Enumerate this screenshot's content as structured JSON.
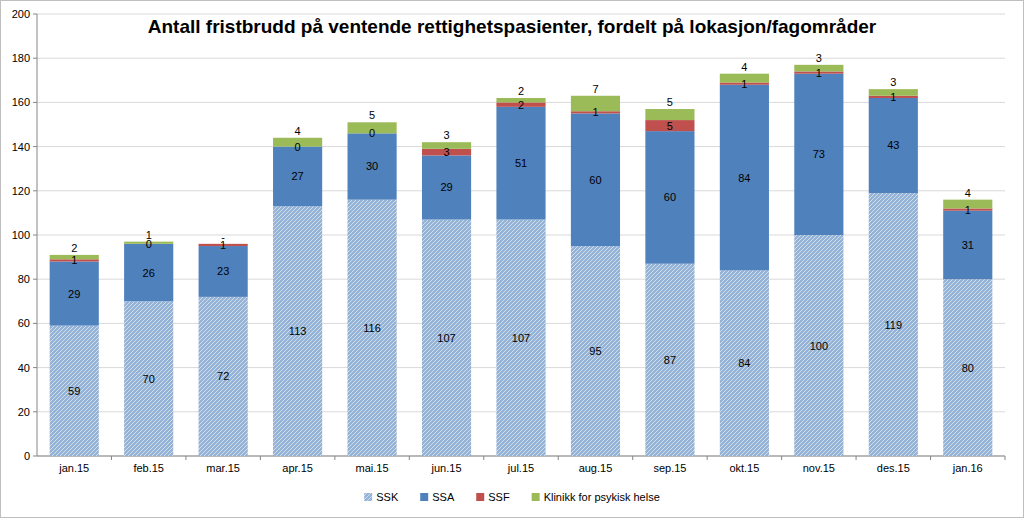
{
  "chart_data": {
    "type": "bar",
    "title": "Antall fristbrudd på ventende rettighetspasienter, fordelt på lokasjon/fagområder",
    "categories": [
      "jan.15",
      "feb.15",
      "mar.15",
      "apr.15",
      "mai.15",
      "jun.15",
      "jul.15",
      "aug.15",
      "sep.15",
      "okt.15",
      "nov.15",
      "des.15",
      "jan.16"
    ],
    "series": [
      {
        "name": "SSK",
        "color": "#95b3d7",
        "values": [
          59,
          70,
          72,
          113,
          116,
          107,
          107,
          95,
          87,
          84,
          100,
          119,
          80
        ]
      },
      {
        "name": "SSA",
        "color": "#4f81bd",
        "values": [
          29,
          26,
          23,
          27,
          30,
          29,
          51,
          60,
          60,
          84,
          73,
          43,
          31
        ]
      },
      {
        "name": "SSF",
        "color": "#c0504d",
        "values": [
          1,
          0,
          1,
          0,
          0,
          3,
          2,
          1,
          5,
          1,
          1,
          1,
          1
        ]
      },
      {
        "name": "Klinikk for psykisk helse",
        "color": "#9bbb59",
        "values": [
          2,
          1,
          0,
          4,
          5,
          3,
          2,
          7,
          5,
          4,
          3,
          3,
          4
        ],
        "value_labels": [
          "2",
          "1",
          "-",
          "4",
          "5",
          "3",
          "2",
          "7",
          "5",
          "4",
          "3",
          "3",
          "4"
        ]
      }
    ],
    "ylim": [
      0,
      200
    ],
    "yticks": [
      0,
      20,
      40,
      60,
      80,
      100,
      120,
      140,
      160,
      180,
      200
    ],
    "stacked": true,
    "data_labels": true,
    "grid": true,
    "legend": "bottom"
  }
}
